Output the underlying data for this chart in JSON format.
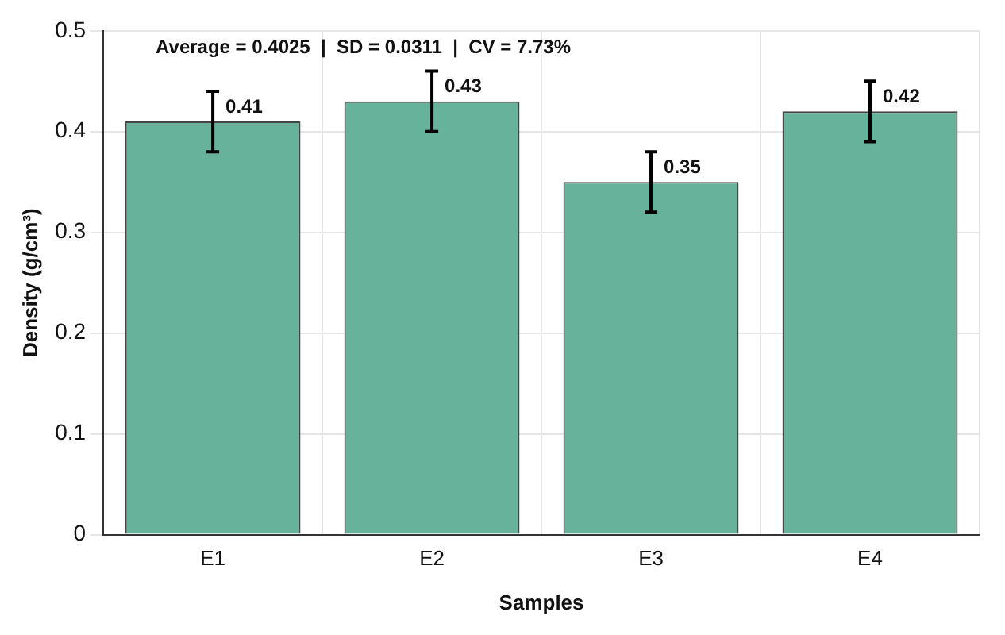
{
  "chart_data": {
    "type": "bar",
    "xlabel": "Samples",
    "ylabel": "Density (g/cm³)",
    "categories": [
      "E1",
      "E2",
      "E3",
      "E4"
    ],
    "values": [
      0.41,
      0.43,
      0.35,
      0.42
    ],
    "errors": [
      0.03,
      0.03,
      0.03,
      0.03
    ],
    "color": "#67b29a",
    "ylim": [
      0,
      0.5
    ],
    "yticks": [
      0,
      0.1,
      0.2,
      0.3,
      0.4,
      0.5
    ],
    "grid": true,
    "data_labels": true,
    "annotations": [
      "Average = 0.4025  |  SD = 0.0311  |  CV = 7.73%"
    ]
  }
}
